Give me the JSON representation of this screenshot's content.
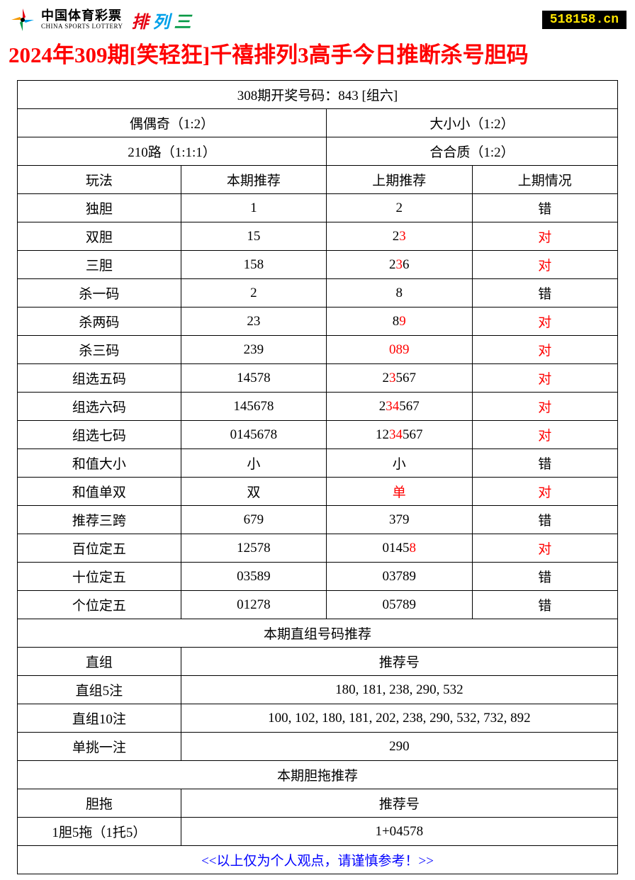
{
  "header": {
    "lottery_cn": "中国体育彩票",
    "lottery_en": "CHINA SPORTS LOTTERY",
    "ple_chars": [
      "排",
      "列",
      "三"
    ],
    "site_url": "518158.cn"
  },
  "title": "2024年309期[笑轻狂]千禧排列3高手今日推断杀号胆码",
  "draw_result": "308期开奖号码：843 [组六]",
  "meta_rows": [
    [
      "偶偶奇（1:2）",
      "大小小（1:2）"
    ],
    [
      "210路（1:1:1）",
      "合合质（1:2）"
    ]
  ],
  "columns": [
    "玩法",
    "本期推荐",
    "上期推荐",
    "上期情况"
  ],
  "rows": [
    {
      "play": "独胆",
      "current": "1",
      "prev": [
        {
          "t": "2",
          "r": false
        }
      ],
      "status": "错",
      "correct": false
    },
    {
      "play": "双胆",
      "current": "15",
      "prev": [
        {
          "t": "2",
          "r": false
        },
        {
          "t": "3",
          "r": true
        }
      ],
      "status": "对",
      "correct": true
    },
    {
      "play": "三胆",
      "current": "158",
      "prev": [
        {
          "t": "2",
          "r": false
        },
        {
          "t": "3",
          "r": true
        },
        {
          "t": "6",
          "r": false
        }
      ],
      "status": "对",
      "correct": true
    },
    {
      "play": "杀一码",
      "current": "2",
      "prev": [
        {
          "t": "8",
          "r": false
        }
      ],
      "status": "错",
      "correct": false
    },
    {
      "play": "杀两码",
      "current": "23",
      "prev": [
        {
          "t": "8",
          "r": false
        },
        {
          "t": "9",
          "r": true
        }
      ],
      "status": "对",
      "correct": true
    },
    {
      "play": "杀三码",
      "current": "239",
      "prev": [
        {
          "t": "0",
          "r": true
        },
        {
          "t": "8",
          "r": true
        },
        {
          "t": "9",
          "r": true
        }
      ],
      "status": "对",
      "correct": true
    },
    {
      "play": "组选五码",
      "current": "14578",
      "prev": [
        {
          "t": "2",
          "r": false
        },
        {
          "t": "3",
          "r": true
        },
        {
          "t": "567",
          "r": false
        }
      ],
      "status": "对",
      "correct": true
    },
    {
      "play": "组选六码",
      "current": "145678",
      "prev": [
        {
          "t": "2",
          "r": false
        },
        {
          "t": "34",
          "r": true
        },
        {
          "t": "567",
          "r": false
        }
      ],
      "status": "对",
      "correct": true
    },
    {
      "play": "组选七码",
      "current": "0145678",
      "prev": [
        {
          "t": "12",
          "r": false
        },
        {
          "t": "34",
          "r": true
        },
        {
          "t": "567",
          "r": false
        }
      ],
      "status": "对",
      "correct": true
    },
    {
      "play": "和值大小",
      "current": "小",
      "prev": [
        {
          "t": "小",
          "r": false
        }
      ],
      "status": "错",
      "correct": false
    },
    {
      "play": "和值单双",
      "current": "双",
      "prev": [
        {
          "t": "单",
          "r": true
        }
      ],
      "status": "对",
      "correct": true
    },
    {
      "play": "推荐三跨",
      "current": "679",
      "prev": [
        {
          "t": "379",
          "r": false
        }
      ],
      "status": "错",
      "correct": false
    },
    {
      "play": "百位定五",
      "current": "12578",
      "prev": [
        {
          "t": "0145",
          "r": false
        },
        {
          "t": "8",
          "r": true
        }
      ],
      "status": "对",
      "correct": true
    },
    {
      "play": "十位定五",
      "current": "03589",
      "prev": [
        {
          "t": "03789",
          "r": false
        }
      ],
      "status": "错",
      "correct": false
    },
    {
      "play": "个位定五",
      "current": "01278",
      "prev": [
        {
          "t": "05789",
          "r": false
        }
      ],
      "status": "错",
      "correct": false
    }
  ],
  "section1_title": "本期直组号码推荐",
  "section1_header": [
    "直组",
    "推荐号"
  ],
  "section1_rows": [
    {
      "label": "直组5注",
      "value": "180, 181, 238, 290, 532"
    },
    {
      "label": "直组10注",
      "value": "100, 102, 180, 181, 202, 238, 290, 532, 732, 892"
    },
    {
      "label": "单挑一注",
      "value": "290"
    }
  ],
  "section2_title": "本期胆拖推荐",
  "section2_header": [
    "胆拖",
    "推荐号"
  ],
  "section2_rows": [
    {
      "label": "1胆5拖（1托5）",
      "value": "1+04578"
    }
  ],
  "footer": "<<以上仅为个人观点，请谨慎参考！>>",
  "colors": {
    "title": "#ff0000",
    "correct": "#ff0000",
    "footer": "#0000ff",
    "badge_bg": "#000000",
    "badge_fg": "#ffe600"
  }
}
